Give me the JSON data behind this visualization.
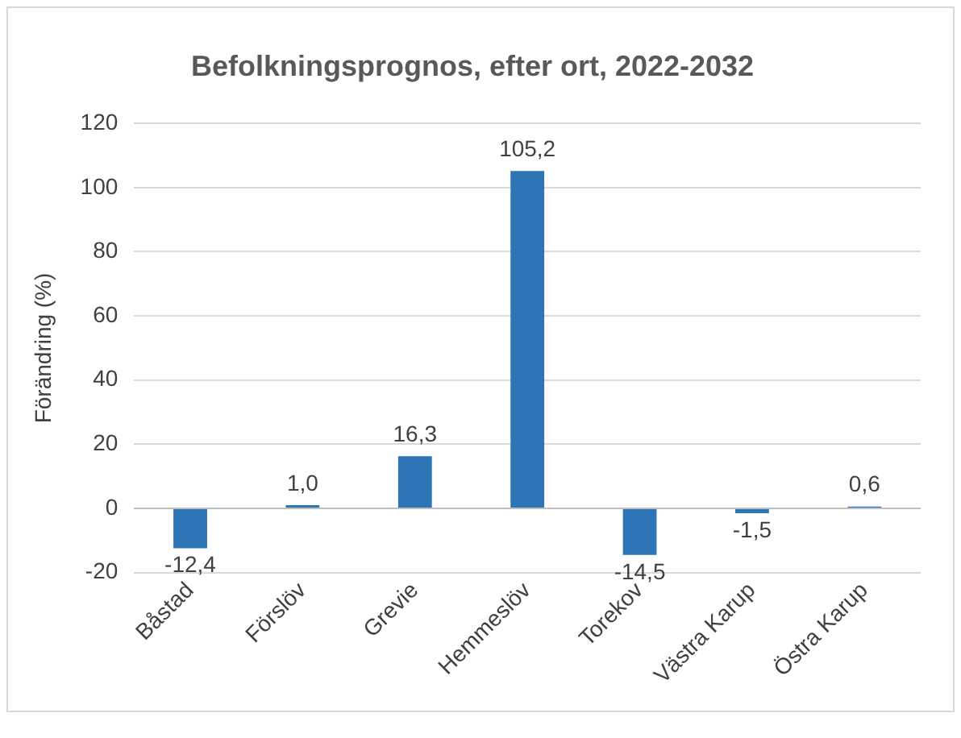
{
  "chart_data": {
    "type": "bar",
    "title": "Befolkningsprognos, efter ort, 2022-2032",
    "ylabel": "Förändring (%)",
    "categories": [
      "Båstad",
      "Förslöv",
      "Grevie",
      "Hemmeslöv",
      "Torekov",
      "Västra Karup",
      "Östra Karup"
    ],
    "values": [
      -12.4,
      1.0,
      16.3,
      105.2,
      -14.5,
      -1.5,
      0.6
    ],
    "value_labels": [
      "-12,4",
      "1,0",
      "16,3",
      "105,2",
      "-14,5",
      "-1,5",
      "0,6"
    ],
    "color": "#2e75b6",
    "ylim": [
      -20,
      120
    ],
    "yticks": [
      -20,
      0,
      20,
      40,
      60,
      80,
      100,
      120
    ],
    "grid": "y",
    "legend": false
  }
}
